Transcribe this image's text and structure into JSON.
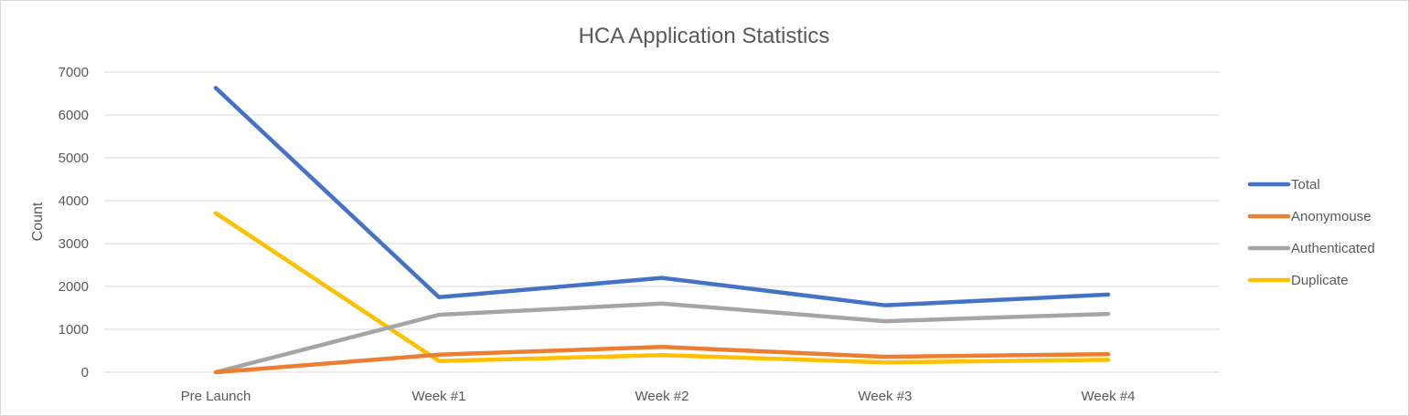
{
  "chart_data": {
    "type": "line",
    "title": "HCA Application Statistics",
    "xlabel": "",
    "ylabel": "Count",
    "ylim": [
      0,
      7000
    ],
    "yticks": [
      0,
      1000,
      2000,
      3000,
      4000,
      5000,
      6000,
      7000
    ],
    "grid": true,
    "legend_position": "right",
    "categories": [
      "Pre Launch",
      "Week #1",
      "Week #2",
      "Week #3",
      "Week #4"
    ],
    "series": [
      {
        "name": "Total",
        "color": "#4472c4",
        "values": [
          6630,
          1750,
          2200,
          1560,
          1810
        ]
      },
      {
        "name": "Anonymouse",
        "color": "#ed7d31",
        "values": [
          0,
          410,
          590,
          360,
          420
        ]
      },
      {
        "name": "Authenticated",
        "color": "#a5a5a5",
        "values": [
          0,
          1340,
          1600,
          1190,
          1360
        ]
      },
      {
        "name": "Duplicate",
        "color": "#ffc000",
        "values": [
          3710,
          260,
          400,
          230,
          290
        ]
      }
    ]
  }
}
